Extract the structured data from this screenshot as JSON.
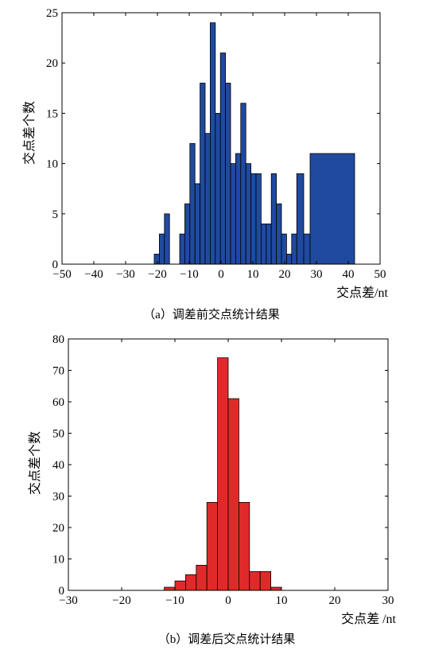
{
  "chart_data": [
    {
      "type": "bar",
      "caption": "（a）调差前交点统计结果",
      "xlabel": "交点差/nt",
      "ylabel": "交点差个数",
      "xlim": [
        -50,
        50
      ],
      "ylim": [
        0,
        25
      ],
      "xticks": [
        -50,
        -40,
        -30,
        -20,
        -10,
        0,
        10,
        20,
        30,
        40,
        50
      ],
      "yticks": [
        0,
        5,
        10,
        15,
        20,
        25
      ],
      "color": "#1f4aa0",
      "bins": [
        {
          "x0": -21,
          "x1": -19.4,
          "value": 1
        },
        {
          "x0": -19.4,
          "x1": -17.8,
          "value": 3
        },
        {
          "x0": -17.8,
          "x1": -16.2,
          "value": 5
        },
        {
          "x0": -13,
          "x1": -11.4,
          "value": 3
        },
        {
          "x0": -11.4,
          "x1": -9.8,
          "value": 6
        },
        {
          "x0": -9.8,
          "x1": -8.2,
          "value": 12
        },
        {
          "x0": -8.2,
          "x1": -6.6,
          "value": 8
        },
        {
          "x0": -6.6,
          "x1": -5,
          "value": 18
        },
        {
          "x0": -5,
          "x1": -3.4,
          "value": 13
        },
        {
          "x0": -3.4,
          "x1": -1.8,
          "value": 24
        },
        {
          "x0": -1.8,
          "x1": -0.2,
          "value": 15
        },
        {
          "x0": -0.2,
          "x1": 1.4,
          "value": 21
        },
        {
          "x0": 1.4,
          "x1": 3,
          "value": 18
        },
        {
          "x0": 3,
          "x1": 4.6,
          "value": 10
        },
        {
          "x0": 4.6,
          "x1": 6.2,
          "value": 11
        },
        {
          "x0": 6.2,
          "x1": 7.8,
          "value": 16
        },
        {
          "x0": 7.8,
          "x1": 9.4,
          "value": 10
        },
        {
          "x0": 9.4,
          "x1": 11,
          "value": 9
        },
        {
          "x0": 11,
          "x1": 12.6,
          "value": 9
        },
        {
          "x0": 12.6,
          "x1": 14.2,
          "value": 4
        },
        {
          "x0": 14.2,
          "x1": 15.8,
          "value": 4
        },
        {
          "x0": 15.8,
          "x1": 17.4,
          "value": 9
        },
        {
          "x0": 17.4,
          "x1": 19,
          "value": 6
        },
        {
          "x0": 19,
          "x1": 20.6,
          "value": 3
        },
        {
          "x0": 20.6,
          "x1": 22.2,
          "value": 1
        },
        {
          "x0": 22.2,
          "x1": 23.8,
          "value": 3
        },
        {
          "x0": 23.8,
          "x1": 26,
          "value": 9
        },
        {
          "x0": 26,
          "x1": 28,
          "value": 3
        },
        {
          "x0": 28,
          "x1": 42,
          "value": 11
        }
      ]
    },
    {
      "type": "bar",
      "caption": "（b）调差后交点统计结果",
      "xlabel": "交点差 /nt",
      "ylabel": "交点差个数",
      "xlim": [
        -30,
        30
      ],
      "ylim": [
        0,
        80
      ],
      "xticks": [
        -30,
        -20,
        -10,
        0,
        10,
        20,
        30
      ],
      "yticks": [
        0,
        10,
        20,
        30,
        40,
        50,
        60,
        70,
        80
      ],
      "color": "#e02a2a",
      "bins": [
        {
          "x0": -12,
          "x1": -10,
          "value": 1
        },
        {
          "x0": -10,
          "x1": -8,
          "value": 3
        },
        {
          "x0": -8,
          "x1": -6,
          "value": 5
        },
        {
          "x0": -6,
          "x1": -4,
          "value": 8
        },
        {
          "x0": -4,
          "x1": -2,
          "value": 28
        },
        {
          "x0": -2,
          "x1": 0,
          "value": 74
        },
        {
          "x0": 0,
          "x1": 2,
          "value": 61
        },
        {
          "x0": 2,
          "x1": 4,
          "value": 28
        },
        {
          "x0": 4,
          "x1": 6,
          "value": 6
        },
        {
          "x0": 6,
          "x1": 8,
          "value": 6
        },
        {
          "x0": 8,
          "x1": 10,
          "value": 1
        }
      ]
    }
  ]
}
